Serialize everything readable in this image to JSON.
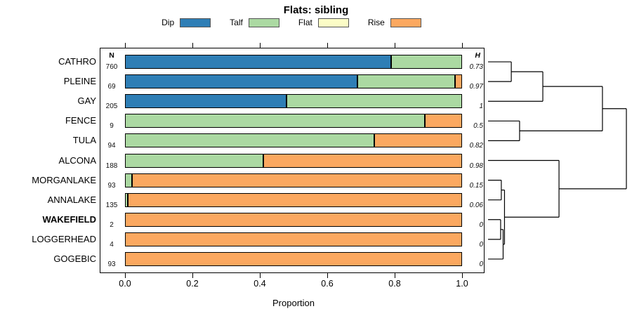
{
  "title": "Flats: sibling",
  "legend": {
    "items": [
      {
        "label": "Dip",
        "color": "#2e7eb5"
      },
      {
        "label": "Talf",
        "color": "#abd9a2"
      },
      {
        "label": "Flat",
        "color": "#fbfcc6"
      },
      {
        "label": "Rise",
        "color": "#fba860"
      }
    ]
  },
  "table": {
    "n_header": "N",
    "h_header": "H"
  },
  "axis": {
    "xlabel": "Proportion",
    "ticks": [
      0,
      0.2,
      0.4,
      0.6,
      0.8,
      1.0
    ],
    "tick_labels": [
      "0.0",
      "0.2",
      "0.4",
      "0.6",
      "0.8",
      "1.0"
    ]
  },
  "chart_data": {
    "type": "bar",
    "orientation": "horizontal",
    "stacked": true,
    "title": "Flats: sibling",
    "xlabel": "Proportion",
    "xlim": [
      0,
      1
    ],
    "categories": [
      "CATHRO",
      "PLEINE",
      "GAY",
      "FENCE",
      "TULA",
      "ALCONA",
      "MORGANLAKE",
      "ANNALAKE",
      "WAKEFIELD",
      "LOGGERHEAD",
      "GOGEBIC"
    ],
    "bold_categories": [
      "WAKEFIELD"
    ],
    "n_values": [
      760,
      69,
      205,
      9,
      94,
      188,
      93,
      135,
      2,
      4,
      93
    ],
    "h_values": [
      "0.73",
      "0.97",
      "1",
      "0.5",
      "0.82",
      "0.98",
      "0.15",
      "0.06",
      "0",
      "0",
      "0"
    ],
    "series": [
      {
        "name": "Dip",
        "color": "#2e7eb5",
        "values": [
          0.79,
          0.69,
          0.48,
          0,
          0,
          0,
          0,
          0,
          0,
          0,
          0
        ]
      },
      {
        "name": "Talf",
        "color": "#abd9a2",
        "values": [
          0.21,
          0.29,
          0.52,
          0.89,
          0.74,
          0.41,
          0.02,
          0.008,
          0,
          0,
          0
        ]
      },
      {
        "name": "Flat",
        "color": "#fbfcc6",
        "values": [
          0,
          0,
          0,
          0,
          0,
          0,
          0,
          0,
          0,
          0,
          0
        ]
      },
      {
        "name": "Rise",
        "color": "#fba860",
        "values": [
          0,
          0.02,
          0,
          0.11,
          0.26,
          0.59,
          0.98,
          0.992,
          1,
          1,
          1
        ]
      }
    ],
    "dendrogram": {
      "merges": [
        {
          "id": "m1",
          "a": "CATHRO",
          "b": "PLEINE",
          "height": 0.168
        },
        {
          "id": "m2",
          "a": "m1",
          "b": "GAY",
          "height": 0.396
        },
        {
          "id": "m3",
          "a": "FENCE",
          "b": "TULA",
          "height": 0.228
        },
        {
          "id": "m4",
          "a": "m2",
          "b": "m3",
          "height": 0.827
        },
        {
          "id": "m5",
          "a": "MORGANLAKE",
          "b": "ANNALAKE",
          "height": 0.096
        },
        {
          "id": "m6",
          "a": "WAKEFIELD",
          "b": "LOGGERHEAD",
          "height": 0.091
        },
        {
          "id": "m7",
          "a": "m6",
          "b": "GOGEBIC",
          "height": 0.109
        },
        {
          "id": "m8",
          "a": "m5",
          "b": "m7",
          "height": 0.119
        },
        {
          "id": "m9",
          "a": "ALCONA",
          "b": "m8",
          "height": 0.513
        },
        {
          "id": "m10",
          "a": "m4",
          "b": "m9",
          "height": 1.0
        }
      ]
    }
  }
}
